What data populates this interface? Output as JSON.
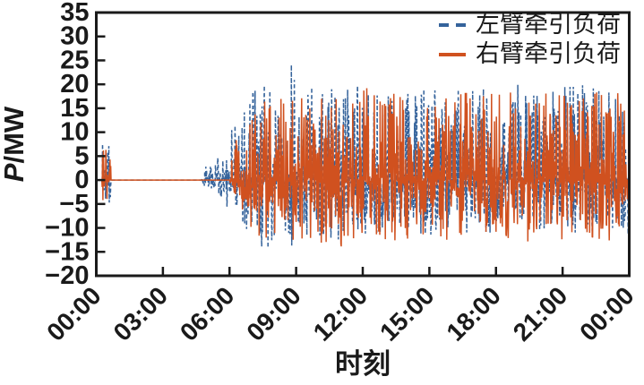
{
  "figure": {
    "background_color": "#ffffff",
    "frame_color": "#1a1a1a",
    "title": ""
  },
  "chart_data": {
    "type": "line",
    "title": "",
    "xlabel": "时刻",
    "ylabel": "P/MW",
    "ylabel_italic_part": "P",
    "ylabel_rest_part": "/MW",
    "ylim": [
      -20,
      35
    ],
    "y_ticks": [
      35,
      30,
      25,
      20,
      15,
      10,
      5,
      0,
      -5,
      -10,
      -15,
      -20
    ],
    "x_tick_labels": [
      "00:00",
      "03:00",
      "06:00",
      "09:00",
      "12:00",
      "15:00",
      "18:00",
      "21:00",
      "00:00"
    ],
    "x_ticks_minutes": [
      0,
      180,
      360,
      540,
      720,
      900,
      1080,
      1260,
      1440
    ],
    "x_range_minutes": [
      0,
      1440
    ],
    "x_tick_angle_deg": 45,
    "grid": false,
    "legend_position": "top-right-inside",
    "series": [
      {
        "name": "左臂牵引负荷",
        "color": "#35639b",
        "line_style": "dashed",
        "description": "stochastic traction load, min/max envelope vs time (minutes)",
        "envelope": [
          [
            0,
            0,
            0
          ],
          [
            15,
            0,
            0
          ],
          [
            17,
            -5,
            8
          ],
          [
            38,
            -5,
            8
          ],
          [
            40,
            0,
            0
          ],
          [
            285,
            0,
            0
          ],
          [
            292,
            -1.5,
            3
          ],
          [
            320,
            -2,
            4
          ],
          [
            345,
            -4,
            6
          ],
          [
            360,
            -7,
            10
          ],
          [
            375,
            -9,
            13
          ],
          [
            400,
            -11,
            16
          ],
          [
            430,
            -13,
            20
          ],
          [
            470,
            -15.5,
            21
          ],
          [
            505,
            -13,
            20
          ],
          [
            527,
            -14,
            25.5
          ],
          [
            550,
            -12,
            20
          ],
          [
            600,
            -13,
            19
          ],
          [
            700,
            -12,
            20
          ],
          [
            800,
            -11,
            19
          ],
          [
            900,
            -12,
            20
          ],
          [
            1000,
            -11,
            19.5
          ],
          [
            1100,
            -12,
            21
          ],
          [
            1200,
            -11,
            19
          ],
          [
            1300,
            -12,
            20
          ],
          [
            1380,
            -11,
            21
          ],
          [
            1440,
            -12,
            20
          ]
        ]
      },
      {
        "name": "右臂牵引负荷",
        "color": "#d0511f",
        "line_style": "solid",
        "description": "stochastic traction load, min/max envelope vs time (minutes)",
        "envelope": [
          [
            0,
            0,
            0
          ],
          [
            15,
            0,
            0
          ],
          [
            17,
            -5.5,
            7.5
          ],
          [
            38,
            -5.5,
            7.5
          ],
          [
            40,
            0,
            0
          ],
          [
            360,
            0,
            0
          ],
          [
            368,
            -3,
            6
          ],
          [
            385,
            -6,
            10
          ],
          [
            405,
            -9,
            14
          ],
          [
            430,
            -12,
            17
          ],
          [
            470,
            -13,
            18
          ],
          [
            520,
            -12,
            17
          ],
          [
            560,
            -14,
            18
          ],
          [
            620,
            -13,
            18
          ],
          [
            700,
            -16,
            19
          ],
          [
            740,
            -12,
            19.5
          ],
          [
            800,
            -13,
            18
          ],
          [
            860,
            -12,
            19
          ],
          [
            920,
            -13,
            18
          ],
          [
            980,
            -12,
            19
          ],
          [
            1040,
            -13,
            18
          ],
          [
            1100,
            -12,
            19
          ],
          [
            1160,
            -13,
            18
          ],
          [
            1220,
            -12,
            19
          ],
          [
            1280,
            -13,
            18
          ],
          [
            1340,
            -12,
            19
          ],
          [
            1400,
            -13,
            18
          ],
          [
            1440,
            -13,
            19
          ]
        ]
      }
    ]
  },
  "legend": {
    "items": [
      {
        "label": "左臂牵引负荷"
      },
      {
        "label": "右臂牵引负荷"
      }
    ]
  }
}
